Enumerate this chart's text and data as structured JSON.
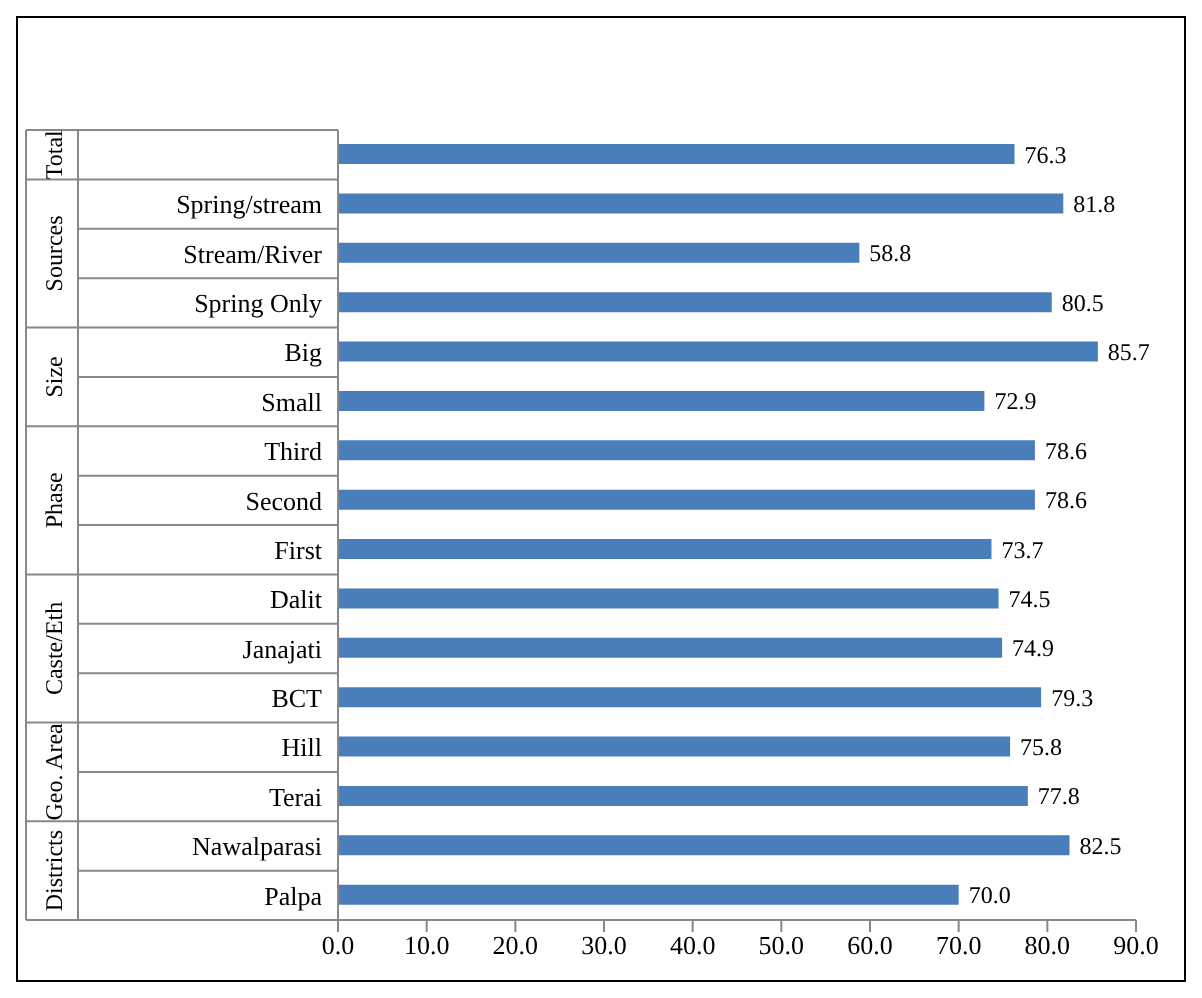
{
  "chart_data": {
    "type": "bar",
    "orientation": "horizontal",
    "categories": [
      null,
      "Spring/stream",
      "Stream/River",
      "Spring Only",
      "Big",
      "Small",
      "Third",
      "Second",
      "First",
      "Dalit",
      "Janajati",
      "BCT",
      "Hill",
      "Terai",
      "Nawalparasi",
      "Palpa"
    ],
    "values": [
      76.3,
      81.8,
      58.8,
      80.5,
      85.7,
      72.9,
      78.6,
      78.6,
      73.7,
      74.5,
      74.9,
      79.3,
      75.8,
      77.8,
      82.5,
      70.0
    ],
    "value_labels": [
      "76.3",
      "81.8",
      "58.8",
      "80.5",
      "85.7",
      "72.9",
      "78.6",
      "78.6",
      "73.7",
      "74.5",
      "74.9",
      "79.3",
      "75.8",
      "77.8",
      "82.5",
      "70.0"
    ],
    "color": "#4a7ebb",
    "xlim": [
      0,
      90
    ],
    "xticks": [
      {
        "value": 0,
        "label": "0.0"
      },
      {
        "value": 10,
        "label": "10.0"
      },
      {
        "value": 20,
        "label": "20.0"
      },
      {
        "value": 30,
        "label": "30.0"
      },
      {
        "value": 40,
        "label": "40.0"
      },
      {
        "value": 50,
        "label": "50.0"
      },
      {
        "value": 60,
        "label": "60.0"
      },
      {
        "value": 70,
        "label": "70.0"
      },
      {
        "value": 80,
        "label": "80.0"
      },
      {
        "value": 90,
        "label": "90.0"
      }
    ],
    "annotations": [
      "Total",
      "Sources",
      "Size",
      "Phase",
      "Caste/Eth",
      "Geo. Area",
      "Districts"
    ]
  }
}
